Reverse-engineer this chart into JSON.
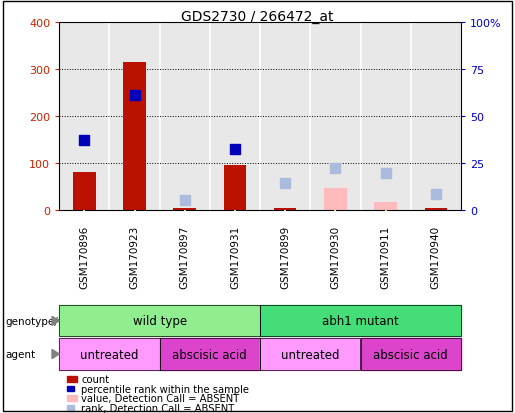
{
  "title": "GDS2730 / 266472_at",
  "samples": [
    "GSM170896",
    "GSM170923",
    "GSM170897",
    "GSM170931",
    "GSM170899",
    "GSM170930",
    "GSM170911",
    "GSM170940"
  ],
  "red_bars": [
    80,
    315,
    5,
    95,
    5,
    0,
    0,
    5
  ],
  "blue_squares_val": [
    150,
    245,
    0,
    130,
    0,
    0,
    0,
    0
  ],
  "pink_bars": [
    0,
    0,
    0,
    0,
    0,
    48,
    18,
    0
  ],
  "light_blue_squares_val": [
    0,
    0,
    22,
    0,
    58,
    90,
    78,
    35
  ],
  "ylim": [
    0,
    400
  ],
  "y2lim": [
    0,
    100
  ],
  "yticks": [
    0,
    100,
    200,
    300,
    400
  ],
  "y2ticks": [
    0,
    25,
    50,
    75,
    100
  ],
  "y2tick_labels": [
    "0",
    "25",
    "50",
    "75",
    "100%"
  ],
  "genotype_groups": [
    {
      "label": "wild type",
      "start": 0,
      "end": 4,
      "color": "#90EE90"
    },
    {
      "label": "abh1 mutant",
      "start": 4,
      "end": 8,
      "color": "#44DD77"
    }
  ],
  "agent_groups": [
    {
      "label": "untreated",
      "start": 0,
      "end": 2,
      "color": "#FF99FF"
    },
    {
      "label": "abscisic acid",
      "start": 2,
      "end": 4,
      "color": "#DD44CC"
    },
    {
      "label": "untreated",
      "start": 4,
      "end": 6,
      "color": "#FF99FF"
    },
    {
      "label": "abscisic acid",
      "start": 6,
      "end": 8,
      "color": "#DD44CC"
    }
  ],
  "bar_width": 0.45,
  "square_size": 60,
  "red_color": "#BB1100",
  "blue_color": "#0000BB",
  "pink_color": "#FFBBBB",
  "light_blue_color": "#AABBDD",
  "grid_color": "black",
  "bg_color": "#E8E8E8",
  "left_ylabel_color": "#CC2200",
  "right_ylabel_color": "#0000CC"
}
